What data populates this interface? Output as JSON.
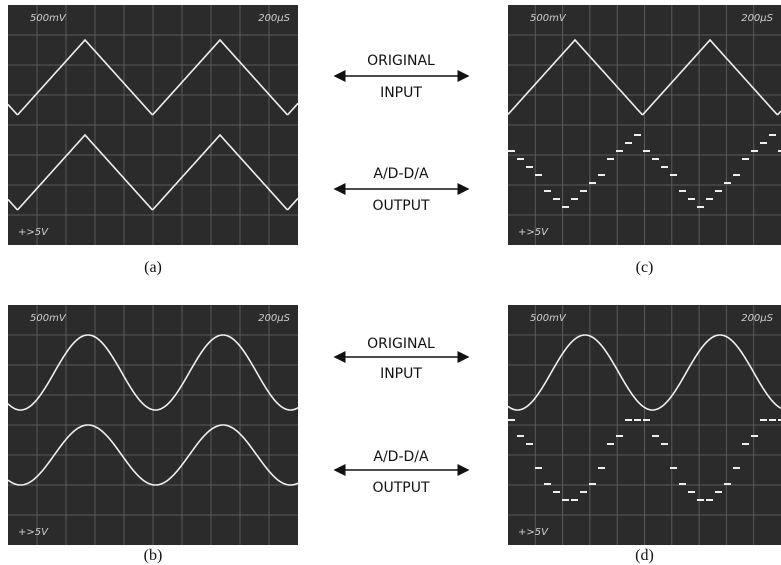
{
  "panels": [
    {
      "caption": "(a)",
      "volts": "500mV",
      "time": "200μS",
      "trigger": "+>5V"
    },
    {
      "caption": "(c)",
      "volts": "500mV",
      "time": "200μS",
      "trigger": "+>5V"
    },
    {
      "caption": "(b)",
      "volts": "500mV",
      "time": "200μS",
      "trigger": "+>5V"
    },
    {
      "caption": "(d)",
      "volts": "500mV",
      "time": "200μS",
      "trigger": "+>5V"
    }
  ],
  "labels": [
    {
      "top": "ORIGINAL",
      "bottom": "INPUT"
    },
    {
      "top": "A/D-D/A",
      "bottom": "OUTPUT"
    },
    {
      "top": "ORIGINAL",
      "bottom": "INPUT"
    },
    {
      "top": "A/D-D/A",
      "bottom": "OUTPUT"
    }
  ]
}
